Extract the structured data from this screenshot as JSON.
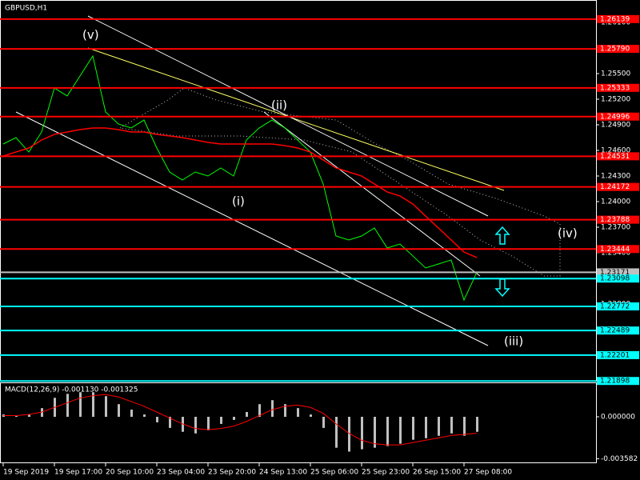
{
  "chart_data": [
    {
      "type": "line",
      "title": "GBPUSD,H1",
      "categories": [
        "19 Sep 2019",
        null,
        null,
        null,
        "19 Sep 17:00",
        null,
        null,
        null,
        "20 Sep 10:00",
        null,
        null,
        null,
        "23 Sep 04:00",
        null,
        null,
        null,
        "23 Sep 20:00",
        null,
        null,
        null,
        "24 Sep 13:00",
        null,
        null,
        null,
        "25 Sep 06:00",
        null,
        null,
        null,
        "25 Sep 23:00",
        null,
        null,
        null,
        "26 Sep 15:00",
        null,
        null,
        null,
        "27 Sep 08:00",
        null
      ],
      "series": [
        {
          "color": "#00ff00",
          "values": [
            1.24675,
            1.2475,
            1.24581,
            1.24816,
            1.25331,
            1.25238,
            1.25472,
            1.25706,
            1.2505,
            1.2491,
            1.24863,
            1.24956,
            1.24628,
            1.24347,
            1.24253,
            1.24347,
            1.243,
            1.24394,
            1.243,
            1.24722,
            1.24863,
            1.24956,
            1.24863,
            1.24722,
            1.24581,
            1.24206,
            1.23597,
            1.2355,
            1.23597,
            1.23691,
            1.23456,
            1.23503,
            1.23363,
            1.23222,
            1.23269,
            1.23316,
            1.22847,
            1.23171
          ]
        },
        {
          "color": "#ff0000",
          "values": [
            1.24534,
            1.24581,
            1.24628,
            1.24722,
            1.24788,
            1.24816,
            1.24844,
            1.24863,
            1.24863,
            1.24844,
            1.24816,
            1.24816,
            1.24788,
            1.24769,
            1.2475,
            1.24722,
            1.24694,
            1.24675,
            1.24675,
            1.24675,
            1.24675,
            1.24675,
            1.24656,
            1.24628,
            1.24581,
            1.24488,
            1.24394,
            1.24347,
            1.243,
            1.24206,
            1.24113,
            1.24066,
            1.23972,
            1.23831,
            1.23691,
            1.2355,
            1.23409,
            1.23344
          ]
        }
      ],
      "ylim": [
        1.219,
        1.263625
      ],
      "yticks": [
        {
          "value": 1.261,
          "label": "1.26100"
        },
        {
          "value": 1.258,
          "label": "1.25800"
        },
        {
          "value": 1.255,
          "label": "1.25500"
        },
        {
          "value": 1.252,
          "label": "1.25200"
        },
        {
          "value": 1.249,
          "label": "1.24900"
        },
        {
          "value": 1.246,
          "label": "1.24600"
        },
        {
          "value": 1.243,
          "label": "1.24300"
        },
        {
          "value": 1.24,
          "label": "1.24000"
        },
        {
          "value": 1.237,
          "label": "1.23700"
        },
        {
          "value": 1.234,
          "label": "1.23400"
        },
        {
          "value": 1.231,
          "label": "1.23100"
        },
        {
          "value": 1.228,
          "label": "1.22800"
        },
        {
          "value": 1.225,
          "label": "1.22500"
        },
        {
          "value": 1.222,
          "label": "1.22200"
        }
      ],
      "levels": [
        {
          "value": 1.26139,
          "label": "1.26139",
          "color": "#ff0000"
        },
        {
          "value": 1.2579,
          "label": "1.25790",
          "color": "#ff0000"
        },
        {
          "value": 1.25333,
          "label": "1.25333",
          "color": "#ff0000"
        },
        {
          "value": 1.24996,
          "label": "1.24996",
          "color": "#ff0000"
        },
        {
          "value": 1.24531,
          "label": "1.24531",
          "color": "#ff0000"
        },
        {
          "value": 1.24172,
          "label": "1.24172",
          "color": "#ff0000"
        },
        {
          "value": 1.23788,
          "label": "1.23788",
          "color": "#ff0000"
        },
        {
          "value": 1.23444,
          "label": "1.23444",
          "color": "#ff0000"
        },
        {
          "value": 1.23171,
          "label": "1.23171",
          "color": "#c0c0c0"
        },
        {
          "value": 1.23098,
          "label": "1.23098",
          "color": "#00ffff"
        },
        {
          "value": 1.22772,
          "label": "1.22772",
          "color": "#00ffff"
        },
        {
          "value": 1.22489,
          "label": "1.22489",
          "color": "#00ffff"
        },
        {
          "value": 1.22201,
          "label": "1.22201",
          "color": "#00ffff"
        },
        {
          "value": 1.21898,
          "label": "1.21898",
          "color": "#00ffff"
        }
      ],
      "annotations": [
        "(v)",
        "(ii)",
        "(i)",
        "(iii)",
        "(iv)"
      ]
    },
    {
      "type": "macd",
      "title": "MACD(12,26,9) -0.001130 -0.001325",
      "series": [
        {
          "color": "#c0c0c0",
          "values": [
            0.0002,
            7e-05,
            0.0002,
            0.00074,
            0.00162,
            0.00196,
            0.0021,
            0.0021,
            0.00176,
            0.00108,
            0.00061,
            0.0002,
            -0.00047,
            -0.00095,
            -0.00128,
            -0.00142,
            -0.00115,
            -0.00061,
            -0.00027,
            0.00041,
            0.00108,
            0.00142,
            0.00108,
            0.00074,
            0.0002,
            -0.00095,
            -0.00264,
            -0.00297,
            -0.00277,
            -0.00264,
            -0.0025,
            -0.0023,
            -0.00196,
            -0.00183,
            -0.00162,
            -0.00142,
            -0.00162,
            -0.00128
          ]
        },
        {
          "color": "#ff0000",
          "values": [
            0.0001,
            0.0001,
            0.0002,
            0.0004,
            0.0008,
            0.0012,
            0.0016,
            0.0018,
            0.0019,
            0.0017,
            0.0013,
            0.0009,
            0.0004,
            -0.0001,
            -0.0006,
            -0.001,
            -0.0011,
            -0.001,
            -0.0008,
            -0.0004,
            0.0001,
            0.0006,
            0.0009,
            0.001,
            0.0008,
            0.0003,
            -0.0006,
            -0.0014,
            -0.002,
            -0.0023,
            -0.0024,
            -0.0024,
            -0.0022,
            -0.002,
            -0.0018,
            -0.0016,
            -0.0015,
            -0.0014
          ]
        }
      ],
      "ylim": [
        -0.003893,
        0.0028
      ],
      "yticks": [
        {
          "value": 0,
          "label": "0.000000"
        },
        {
          "value": -0.003582,
          "label": "-0.003582"
        }
      ]
    }
  ]
}
